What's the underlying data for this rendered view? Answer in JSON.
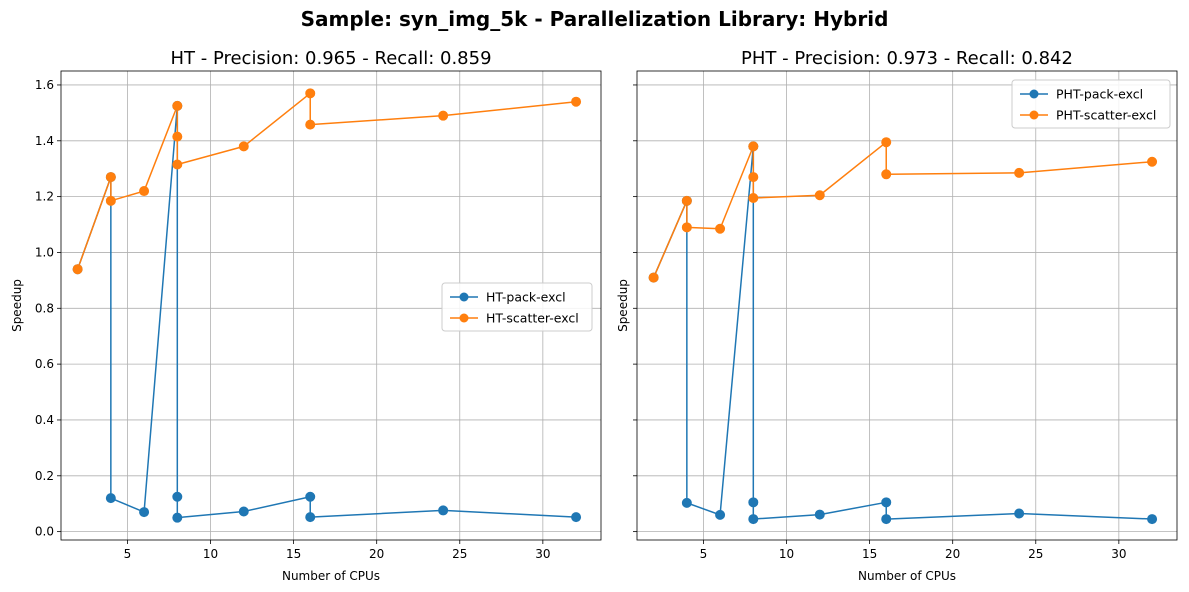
{
  "suptitle": "Sample: syn_img_5k - Parallelization Library: Hybrid",
  "chart_data": [
    {
      "type": "line",
      "title": "HT - Precision: 0.965 - Recall: 0.859",
      "xlabel": "Number of CPUs",
      "ylabel": "Speedup",
      "xlim": [
        1,
        33.5
      ],
      "ylim": [
        -0.03,
        1.65
      ],
      "xticks": [
        5,
        10,
        15,
        20,
        25,
        30
      ],
      "yticks": [
        0.0,
        0.2,
        0.4,
        0.6,
        0.8,
        1.0,
        1.2,
        1.4,
        1.6
      ],
      "grid": true,
      "legend_position": "center-right",
      "series": [
        {
          "name": "HT-pack-excl",
          "color": "#1f77b4",
          "x": [
            2,
            4,
            4,
            6,
            8,
            8,
            8,
            12,
            16,
            16,
            24,
            32
          ],
          "y": [
            0.94,
            1.27,
            0.12,
            0.07,
            1.525,
            0.125,
            0.05,
            0.072,
            0.125,
            0.052,
            0.076,
            0.052
          ]
        },
        {
          "name": "HT-scatter-excl",
          "color": "#ff7f0e",
          "x": [
            2,
            4,
            4,
            6,
            8,
            8,
            8,
            12,
            16,
            16,
            24,
            32
          ],
          "y": [
            0.94,
            1.27,
            1.185,
            1.22,
            1.525,
            1.415,
            1.315,
            1.38,
            1.57,
            1.458,
            1.49,
            1.54
          ]
        }
      ]
    },
    {
      "type": "line",
      "title": "PHT - Precision: 0.973 - Recall: 0.842",
      "xlabel": "Number of CPUs",
      "ylabel": "Speedup",
      "xlim": [
        1,
        33.5
      ],
      "ylim": [
        -0.03,
        1.65
      ],
      "xticks": [
        5,
        10,
        15,
        20,
        25,
        30
      ],
      "yticks": [
        0.0,
        0.2,
        0.4,
        0.6,
        0.8,
        1.0,
        1.2,
        1.4,
        1.6
      ],
      "grid": true,
      "legend_position": "top-right",
      "series": [
        {
          "name": "PHT-pack-excl",
          "color": "#1f77b4",
          "x": [
            2,
            4,
            4,
            6,
            8,
            8,
            8,
            12,
            16,
            16,
            24,
            32
          ],
          "y": [
            0.91,
            1.185,
            0.103,
            0.06,
            1.38,
            0.105,
            0.045,
            0.061,
            0.105,
            0.045,
            0.065,
            0.045
          ]
        },
        {
          "name": "PHT-scatter-excl",
          "color": "#ff7f0e",
          "x": [
            2,
            4,
            4,
            6,
            8,
            8,
            8,
            12,
            16,
            16,
            24,
            32
          ],
          "y": [
            0.91,
            1.185,
            1.09,
            1.085,
            1.38,
            1.27,
            1.195,
            1.205,
            1.395,
            1.28,
            1.285,
            1.325
          ]
        }
      ]
    }
  ]
}
